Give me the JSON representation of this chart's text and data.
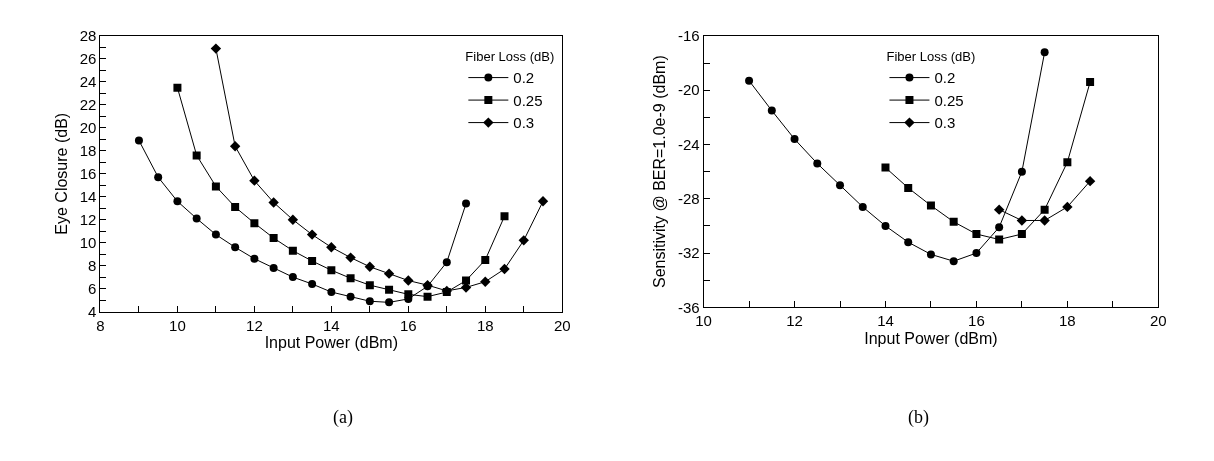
{
  "chart_data": [
    {
      "type": "line",
      "xlabel": "Input Power (dBm)",
      "ylabel": "Eye Closure (dB)",
      "legend_title": "Fiber Loss (dB)",
      "legend": "top right",
      "xlim": [
        8,
        20
      ],
      "ylim": [
        4,
        28
      ],
      "xticks": [
        8,
        {
          "value": 9,
          "label": null
        },
        10,
        {
          "value": 11,
          "label": null
        },
        12,
        {
          "value": 13,
          "label": null
        },
        14,
        {
          "value": 15,
          "label": null
        },
        16,
        {
          "value": 17,
          "label": null
        },
        18,
        {
          "value": 19,
          "label": null
        },
        20
      ],
      "yticks": [
        4,
        {
          "value": 5,
          "label": null
        },
        6,
        {
          "value": 7,
          "label": null
        },
        8,
        {
          "value": 9,
          "label": null
        },
        10,
        {
          "value": 11,
          "label": null
        },
        12,
        {
          "value": 13,
          "label": null
        },
        14,
        {
          "value": 15,
          "label": null
        },
        16,
        {
          "value": 17,
          "label": null
        },
        18,
        {
          "value": 19,
          "label": null
        },
        20,
        {
          "value": 21,
          "label": null
        },
        22,
        {
          "value": 23,
          "label": null
        },
        24,
        {
          "value": 25,
          "label": null
        },
        26,
        {
          "value": 27,
          "label": null
        },
        28
      ],
      "annotations": [
        "(a)"
      ],
      "series": [
        {
          "name": "0.2",
          "color": "#000000",
          "marker": "circle",
          "x": [
            9,
            9.5,
            10,
            10.5,
            11,
            11.5,
            12,
            12.5,
            13,
            13.5,
            14,
            14.5,
            15,
            15.5,
            16,
            16.5,
            17,
            17.5
          ],
          "values": [
            18.9,
            15.7,
            13.6,
            12.1,
            10.7,
            9.6,
            8.6,
            7.8,
            7.0,
            6.4,
            5.7,
            5.3,
            4.9,
            4.8,
            5.1,
            6.2,
            8.3,
            13.4
          ]
        },
        {
          "name": "0.25",
          "color": "#000000",
          "marker": "square",
          "x": [
            10,
            10.5,
            11,
            11.5,
            12,
            12.5,
            13,
            13.5,
            14,
            14.5,
            15,
            15.5,
            16,
            16.5,
            17,
            17.5,
            18,
            18.5
          ],
          "values": [
            23.5,
            17.6,
            14.9,
            13.1,
            11.7,
            10.4,
            9.3,
            8.4,
            7.6,
            6.9,
            6.3,
            5.9,
            5.5,
            5.3,
            5.7,
            6.7,
            8.5,
            12.3
          ]
        },
        {
          "name": "0.3",
          "color": "#000000",
          "marker": "diamond",
          "x": [
            11,
            11.5,
            12,
            12.5,
            13,
            13.5,
            14,
            14.5,
            15,
            15.5,
            16,
            16.5,
            17,
            17.5,
            18,
            18.5,
            19,
            19.5
          ],
          "values": [
            26.9,
            18.4,
            15.4,
            13.5,
            12.0,
            10.7,
            9.6,
            8.7,
            7.9,
            7.3,
            6.7,
            6.3,
            5.8,
            6.1,
            6.6,
            7.7,
            10.2,
            13.6
          ]
        }
      ]
    },
    {
      "type": "line",
      "xlabel": "Input Power (dBm)",
      "ylabel": "Sensitivity @ BER=1.0e-9 (dBm)",
      "legend_title": "Fiber Loss (dB)",
      "legend": "top",
      "xlim": [
        10,
        20
      ],
      "ylim": [
        -36,
        -16
      ],
      "xticks": [
        10,
        {
          "value": 11,
          "label": null
        },
        12,
        {
          "value": 13,
          "label": null
        },
        14,
        {
          "value": 15,
          "label": null
        },
        16,
        {
          "value": 17,
          "label": null
        },
        18,
        {
          "value": 19,
          "label": null
        },
        20
      ],
      "yticks": [
        -36,
        {
          "value": -34,
          "label": null
        },
        -32,
        {
          "value": -30,
          "label": null
        },
        -28,
        {
          "value": -26,
          "label": null
        },
        -24,
        {
          "value": -22,
          "label": null
        },
        -20,
        {
          "value": -18,
          "label": null
        },
        -16
      ],
      "annotations": [
        "(b)"
      ],
      "series": [
        {
          "name": "0.2",
          "color": "#000000",
          "marker": "circle",
          "x": [
            11,
            11.5,
            12,
            12.5,
            13,
            13.5,
            14,
            14.5,
            15,
            15.5,
            16,
            16.5,
            17,
            17.5
          ],
          "values": [
            -19.3,
            -21.5,
            -23.6,
            -25.4,
            -27.0,
            -28.6,
            -30.0,
            -31.2,
            -32.1,
            -32.6,
            -32.0,
            -30.1,
            -26.0,
            -17.2
          ]
        },
        {
          "name": "0.25",
          "color": "#000000",
          "marker": "square",
          "x": [
            14,
            14.5,
            15,
            15.5,
            16,
            16.5,
            17,
            17.5,
            18,
            18.5
          ],
          "values": [
            -25.7,
            -27.2,
            -28.5,
            -29.7,
            -30.6,
            -31.0,
            -30.6,
            -28.8,
            -25.3,
            -19.4
          ]
        },
        {
          "name": "0.3",
          "color": "#000000",
          "marker": "diamond",
          "x": [
            16.5,
            17,
            17.5,
            18,
            18.5
          ],
          "values": [
            -28.8,
            -29.6,
            -29.6,
            -28.6,
            -26.7
          ]
        }
      ]
    }
  ]
}
